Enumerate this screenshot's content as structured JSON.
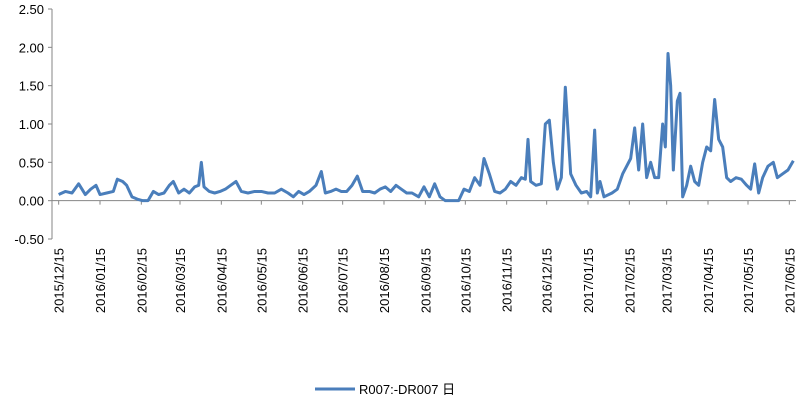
{
  "chart_data": {
    "type": "line",
    "x": [
      "2015/12/15",
      "2015/12/20",
      "2015/12/25",
      "2015/12/30",
      "2016/01/04",
      "2016/01/08",
      "2016/01/12",
      "2016/01/15",
      "2016/01/20",
      "2016/01/25",
      "2016/01/28",
      "2016/02/01",
      "2016/02/04",
      "2016/02/08",
      "2016/02/12",
      "2016/02/16",
      "2016/02/20",
      "2016/02/24",
      "2016/02/28",
      "2016/03/03",
      "2016/03/07",
      "2016/03/10",
      "2016/03/14",
      "2016/03/18",
      "2016/03/22",
      "2016/03/26",
      "2016/03/29",
      "2016/03/31",
      "2016/04/02",
      "2016/04/06",
      "2016/04/10",
      "2016/04/14",
      "2016/04/18",
      "2016/04/22",
      "2016/04/26",
      "2016/04/30",
      "2016/05/05",
      "2016/05/10",
      "2016/05/15",
      "2016/05/20",
      "2016/05/25",
      "2016/05/30",
      "2016/06/04",
      "2016/06/08",
      "2016/06/12",
      "2016/06/16",
      "2016/06/20",
      "2016/06/25",
      "2016/06/29",
      "2016/07/02",
      "2016/07/06",
      "2016/07/10",
      "2016/07/14",
      "2016/07/18",
      "2016/07/22",
      "2016/07/26",
      "2016/07/30",
      "2016/08/04",
      "2016/08/08",
      "2016/08/12",
      "2016/08/16",
      "2016/08/20",
      "2016/08/24",
      "2016/08/28",
      "2016/09/01",
      "2016/09/05",
      "2016/09/10",
      "2016/09/14",
      "2016/09/18",
      "2016/09/22",
      "2016/09/26",
      "2016/09/30",
      "2016/10/05",
      "2016/10/10",
      "2016/10/14",
      "2016/10/18",
      "2016/10/22",
      "2016/10/26",
      "2016/10/29",
      "2016/11/02",
      "2016/11/06",
      "2016/11/10",
      "2016/11/14",
      "2016/11/18",
      "2016/11/22",
      "2016/11/26",
      "2016/11/29",
      "2016/12/01",
      "2016/12/03",
      "2016/12/07",
      "2016/12/11",
      "2016/12/14",
      "2016/12/17",
      "2016/12/20",
      "2016/12/23",
      "2016/12/26",
      "2016/12/29",
      "2017/01/02",
      "2017/01/06",
      "2017/01/10",
      "2017/01/14",
      "2017/01/17",
      "2017/01/20",
      "2017/01/22",
      "2017/01/24",
      "2017/01/27",
      "2017/02/02",
      "2017/02/06",
      "2017/02/10",
      "2017/02/13",
      "2017/02/16",
      "2017/02/19",
      "2017/02/22",
      "2017/02/25",
      "2017/02/28",
      "2017/03/03",
      "2017/03/06",
      "2017/03/09",
      "2017/03/12",
      "2017/03/14",
      "2017/03/16",
      "2017/03/18",
      "2017/03/20",
      "2017/03/23",
      "2017/03/25",
      "2017/03/27",
      "2017/03/30",
      "2017/04/02",
      "2017/04/05",
      "2017/04/08",
      "2017/04/11",
      "2017/04/14",
      "2017/04/17",
      "2017/04/20",
      "2017/04/23",
      "2017/04/26",
      "2017/04/29",
      "2017/05/02",
      "2017/05/06",
      "2017/05/10",
      "2017/05/14",
      "2017/05/17",
      "2017/05/20",
      "2017/05/23",
      "2017/05/26",
      "2017/05/30",
      "2017/06/03",
      "2017/06/06",
      "2017/06/10",
      "2017/06/14",
      "2017/06/18"
    ],
    "series": [
      {
        "name": "R007:-DR007 日",
        "color": "#4a7ebb",
        "values": [
          0.08,
          0.12,
          0.1,
          0.22,
          0.08,
          0.15,
          0.2,
          0.08,
          0.1,
          0.12,
          0.28,
          0.25,
          0.2,
          0.05,
          0.02,
          0.0,
          0.0,
          0.12,
          0.08,
          0.1,
          0.2,
          0.25,
          0.1,
          0.15,
          0.1,
          0.18,
          0.2,
          0.5,
          0.18,
          0.12,
          0.1,
          0.12,
          0.15,
          0.2,
          0.25,
          0.12,
          0.1,
          0.12,
          0.12,
          0.1,
          0.1,
          0.15,
          0.1,
          0.05,
          0.12,
          0.08,
          0.12,
          0.2,
          0.38,
          0.1,
          0.12,
          0.15,
          0.12,
          0.12,
          0.2,
          0.32,
          0.12,
          0.12,
          0.1,
          0.15,
          0.18,
          0.12,
          0.2,
          0.15,
          0.1,
          0.1,
          0.05,
          0.18,
          0.05,
          0.22,
          0.05,
          0.0,
          0.0,
          0.0,
          0.15,
          0.12,
          0.3,
          0.2,
          0.55,
          0.35,
          0.12,
          0.1,
          0.15,
          0.25,
          0.2,
          0.3,
          0.28,
          0.8,
          0.25,
          0.2,
          0.22,
          1.0,
          1.05,
          0.5,
          0.15,
          0.3,
          1.48,
          0.35,
          0.2,
          0.1,
          0.12,
          0.05,
          0.92,
          0.1,
          0.25,
          0.05,
          0.1,
          0.15,
          0.35,
          0.45,
          0.55,
          0.95,
          0.4,
          1.0,
          0.3,
          0.5,
          0.3,
          0.3,
          1.0,
          0.7,
          1.92,
          1.5,
          0.4,
          1.3,
          1.4,
          0.05,
          0.2,
          0.45,
          0.25,
          0.2,
          0.5,
          0.7,
          0.65,
          1.32,
          0.8,
          0.7,
          0.3,
          0.25,
          0.3,
          0.28,
          0.2,
          0.15,
          0.48,
          0.1,
          0.3,
          0.45,
          0.5,
          0.3,
          0.35,
          0.4,
          0.52
        ]
      }
    ],
    "xlim": [
      "2015/12/10",
      "2017/06/20"
    ],
    "xticks": [
      "2015/12/15",
      "2016/01/15",
      "2016/02/15",
      "2016/03/15",
      "2016/04/15",
      "2016/05/15",
      "2016/06/15",
      "2016/07/15",
      "2016/08/15",
      "2016/09/15",
      "2016/10/15",
      "2016/11/15",
      "2016/12/15",
      "2017/01/15",
      "2017/02/15",
      "2017/03/15",
      "2017/04/15",
      "2017/05/15",
      "2017/06/15"
    ],
    "ylim": [
      -0.5,
      2.5
    ],
    "yticks": [
      {
        "value": -0.5,
        "label": "-0.50"
      },
      {
        "value": 0,
        "label": "0.00"
      },
      {
        "value": 0.5,
        "label": "0.50"
      },
      {
        "value": 1,
        "label": "1.00"
      },
      {
        "value": 1.5,
        "label": "1.50"
      },
      {
        "value": 2,
        "label": "2.00"
      },
      {
        "value": 2.5,
        "label": "2.50"
      }
    ],
    "legend": "bottom"
  }
}
